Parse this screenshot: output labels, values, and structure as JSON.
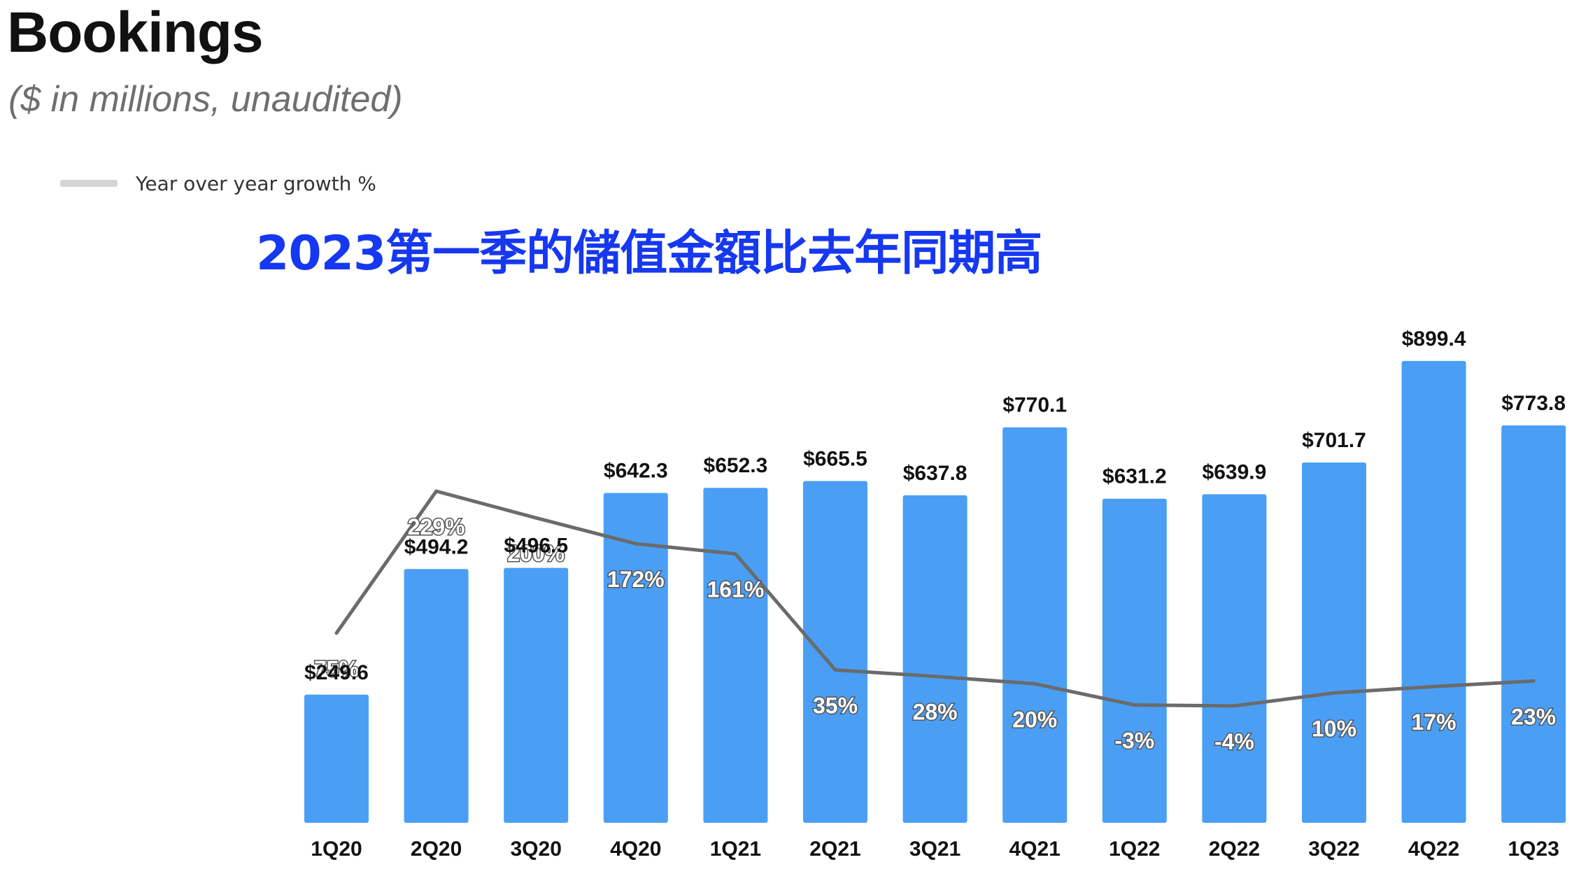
{
  "header": {
    "title": "Bookings",
    "subtitle": "($ in millions, unaudited)"
  },
  "legend": {
    "label": "Year over year growth %"
  },
  "annotation": "2023第一季的儲值金額比去年同期高",
  "colors": {
    "bar": "#4a9ff5",
    "growth_line": "#6b6b6b",
    "annotation": "#1638f0",
    "legend_swatch": "#d4d4d4"
  },
  "chart_data": {
    "type": "bar",
    "categories": [
      "1Q20",
      "2Q20",
      "3Q20",
      "4Q20",
      "1Q21",
      "2Q21",
      "3Q21",
      "4Q21",
      "1Q22",
      "2Q22",
      "3Q22",
      "4Q22",
      "1Q23"
    ],
    "series": [
      {
        "type": "bar",
        "values": [
          249.6,
          494.2,
          496.5,
          642.3,
          652.3,
          665.5,
          637.8,
          770.1,
          631.2,
          639.9,
          701.7,
          899.4,
          773.8
        ],
        "labels": [
          "$249.6",
          "$494.2",
          "$496.5",
          "$642.3",
          "$652.3",
          "$665.5",
          "$637.8",
          "$770.1",
          "$631.2",
          "$639.9",
          "$701.7",
          "$899.4",
          "$773.8"
        ]
      },
      {
        "name": "Year over year growth %",
        "type": "line",
        "values": [
          75,
          229,
          200,
          172,
          161,
          35,
          28,
          20,
          -3,
          -4,
          10,
          17,
          23
        ],
        "labels": [
          "75%",
          "229%",
          "200%",
          "172%",
          "161%",
          "35%",
          "28%",
          "20%",
          "-3%",
          "-4%",
          "10%",
          "17%",
          "23%"
        ]
      }
    ],
    "ylim": [
      0,
      1000
    ],
    "y2lim": [
      -30,
      500
    ],
    "grid": false,
    "legend_position": "top-left"
  }
}
